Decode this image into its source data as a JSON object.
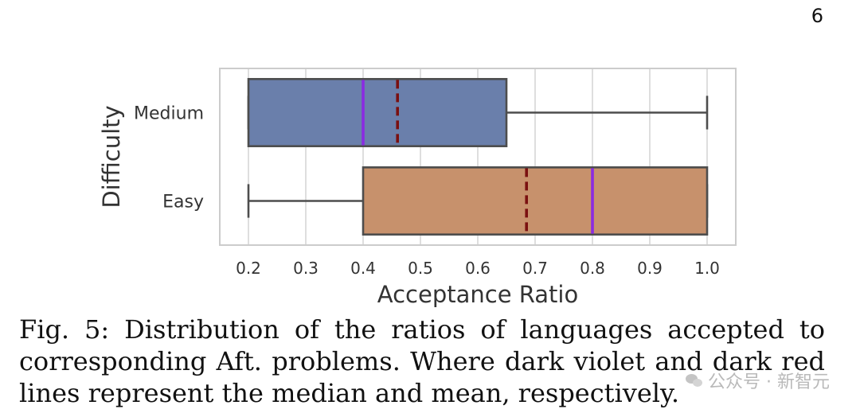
{
  "page": {
    "number": "6"
  },
  "chart_data": {
    "type": "boxplot",
    "orientation": "horizontal",
    "title": "",
    "xlabel": "Acceptance Ratio",
    "ylabel": "Difficulty",
    "xlim": [
      0.15,
      1.05
    ],
    "x_ticks": [
      "0.2",
      "0.3",
      "0.4",
      "0.5",
      "0.6",
      "0.7",
      "0.8",
      "0.9",
      "1.0"
    ],
    "x_tick_values": [
      0.2,
      0.3,
      0.4,
      0.5,
      0.6,
      0.7,
      0.8,
      0.9,
      1.0
    ],
    "grid": "vertical",
    "categories": [
      "Medium",
      "Easy"
    ],
    "boxes": [
      {
        "category": "Medium",
        "whisker_low": 0.2,
        "q1": 0.2,
        "median": 0.4,
        "mean": 0.46,
        "q3": 0.65,
        "whisker_high": 1.0,
        "color": "#6a7fab"
      },
      {
        "category": "Easy",
        "whisker_low": 0.2,
        "q1": 0.4,
        "median": 0.8,
        "mean": 0.685,
        "q3": 1.0,
        "whisker_high": 1.0,
        "color": "#c7916c"
      }
    ],
    "median_color": "#8a2be2",
    "mean_color": "#7a1010"
  },
  "caption": {
    "text": "Fig. 5: Distribution of the ratios of languages accepted to corresponding Aft. problems. Where dark violet and dark red lines represent the median and mean, respectively."
  },
  "watermark": {
    "text": "公众号 · 新智元",
    "icon": "wechat-icon"
  }
}
